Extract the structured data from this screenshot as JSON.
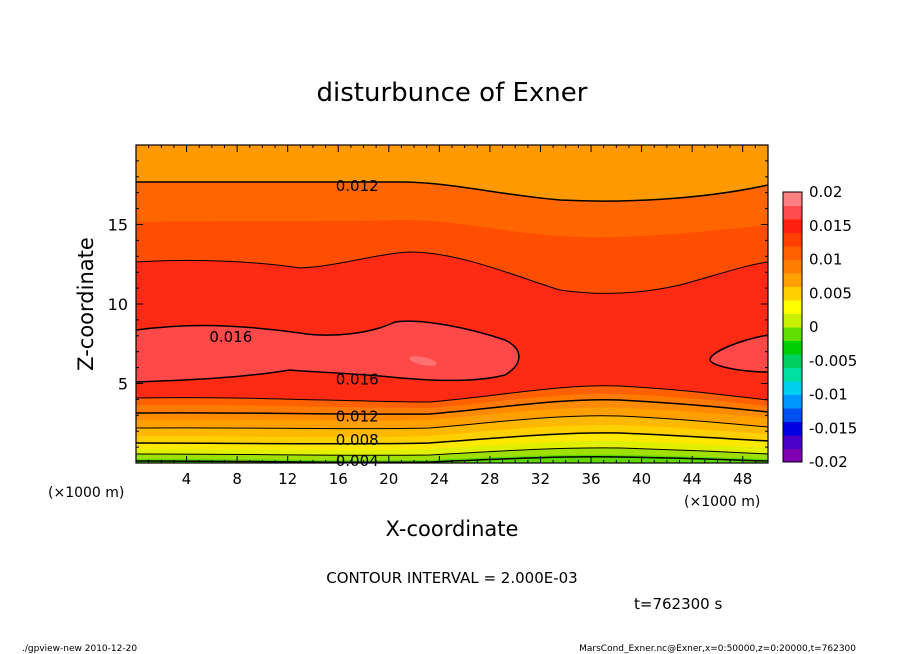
{
  "chart_data": {
    "type": "contour",
    "title": "disturbunce of Exner",
    "xlabel": "X-coordinate",
    "ylabel": "Z-coordinate",
    "x_unit": "(×1000 m)",
    "y_unit": "(×1000 m)",
    "xlim": [
      0,
      50
    ],
    "ylim": [
      0,
      20
    ],
    "x_ticks": [
      4,
      8,
      12,
      16,
      20,
      24,
      28,
      32,
      36,
      40,
      44,
      48
    ],
    "y_ticks": [
      5,
      10,
      15
    ],
    "contour_interval_text": "CONTOUR INTERVAL = 2.000E-03",
    "contour_labels": [
      {
        "label": "0.012",
        "x": 17.5,
        "z": 17.5
      },
      {
        "label": "0.016",
        "x": 7.5,
        "z": 8.0
      },
      {
        "label": "0.016",
        "x": 17.5,
        "z": 5.3
      },
      {
        "label": "0.012",
        "x": 17.5,
        "z": 3.0
      },
      {
        "label": "0.008",
        "x": 17.5,
        "z": 1.5
      },
      {
        "label": "0.004",
        "x": 17.5,
        "z": 0.2
      }
    ],
    "colorbar": {
      "range": [
        -0.02,
        0.02
      ],
      "tick_labels": [
        "0.02",
        "0.015",
        "0.01",
        "0.005",
        "0",
        "-0.005",
        "-0.01",
        "-0.015",
        "-0.02"
      ],
      "colors": [
        "#7f00b2",
        "#4a00c8",
        "#0000e0",
        "#0050f0",
        "#0096ff",
        "#00d0f0",
        "#00e0a0",
        "#00d060",
        "#00d000",
        "#60e000",
        "#c8f000",
        "#ffff00",
        "#ffd000",
        "#ffa000",
        "#ff8000",
        "#ff6000",
        "#ff4000",
        "#ff2010",
        "#ff4c4c",
        "#ff8080"
      ]
    },
    "time_label": "t=762300 s"
  },
  "footer": {
    "left": "./gpview-new   2010-12-20",
    "right": "MarsCond_Exner.nc@Exner,x=0:50000,z=0:20000,t=762300"
  }
}
